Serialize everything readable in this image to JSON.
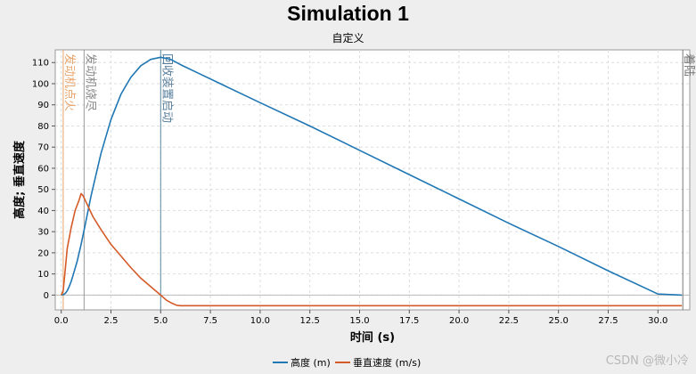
{
  "chart_data": {
    "type": "line",
    "title": "Simulation 1",
    "subtitle": "自定义",
    "xlabel": "时间 (s)",
    "ylabel": "高度; 垂直速度",
    "xlim": [
      -0.3,
      31.6
    ],
    "ylim": [
      -7,
      116
    ],
    "xticks": [
      0.0,
      2.5,
      5.0,
      7.5,
      10.0,
      12.5,
      15.0,
      17.5,
      20.0,
      22.5,
      25.0,
      27.5,
      30.0
    ],
    "xtick_labels": [
      "0.0",
      "2.5",
      "5.0",
      "7.5",
      "10.0",
      "12.5",
      "15.0",
      "17.5",
      "20.0",
      "22.5",
      "25.0",
      "27.5",
      "30.0"
    ],
    "yticks": [
      0,
      10,
      20,
      30,
      40,
      50,
      60,
      70,
      80,
      90,
      100,
      110
    ],
    "ytick_labels": [
      "0",
      "10",
      "20",
      "30",
      "40",
      "50",
      "60",
      "70",
      "80",
      "90",
      "100",
      "110"
    ],
    "grid": true,
    "legend_position": "bottom-center",
    "series": [
      {
        "name": "高度 (m)",
        "color": "#1f77b4",
        "x": [
          0,
          0.1,
          0.2,
          0.3,
          0.4,
          0.5,
          0.6,
          0.8,
          1.0,
          1.2,
          1.5,
          2.0,
          2.5,
          3.0,
          3.5,
          4.0,
          4.5,
          5.0,
          5.5,
          6.0,
          7.0,
          8.0,
          10.0,
          12.5,
          15.0,
          17.5,
          20.0,
          22.5,
          25.0,
          27.5,
          30.0,
          31.2
        ],
        "y": [
          0,
          0.2,
          0.8,
          2,
          4,
          6.5,
          9.5,
          16,
          24,
          33,
          47,
          67,
          83,
          95,
          103,
          108.5,
          111.5,
          112.5,
          111.5,
          109,
          104.5,
          100,
          91,
          80,
          68.5,
          57,
          45.5,
          34,
          23,
          11.5,
          0.5,
          0
        ]
      },
      {
        "name": "垂直速度 (m/s)",
        "color": "#d45a27",
        "x": [
          0,
          0.1,
          0.2,
          0.3,
          0.5,
          0.7,
          0.9,
          1.0,
          1.1,
          1.3,
          1.6,
          2.0,
          2.5,
          3.0,
          3.5,
          4.0,
          4.5,
          5.0,
          5.3,
          5.6,
          5.8,
          6.0,
          8.0,
          10.0,
          15.0,
          20.0,
          25.0,
          30.0,
          31.2
        ],
        "y": [
          0,
          2,
          12,
          22,
          32,
          40,
          45,
          48,
          47,
          43,
          37,
          31,
          24,
          18.5,
          13,
          8,
          4,
          0,
          -2.5,
          -4,
          -4.8,
          -5,
          -5,
          -5,
          -5,
          -5,
          -5,
          -5,
          -5
        ]
      }
    ],
    "event_lines": [
      {
        "label": "发动机点火",
        "x": 0.1,
        "color": "#e8a46b",
        "text_color": "#e8a46b"
      },
      {
        "label": "发动机烧尽",
        "x": 1.15,
        "color": "#999999",
        "text_color": "#888888"
      },
      {
        "label": "回收装置启动",
        "x": 5.0,
        "color": "#5a8aa0",
        "text_color": "#5a7f9c"
      },
      {
        "label": "着陆",
        "x": 31.25,
        "color": "#777777",
        "text_color": "#777777"
      }
    ]
  },
  "watermark": "CSDN @微小冷"
}
